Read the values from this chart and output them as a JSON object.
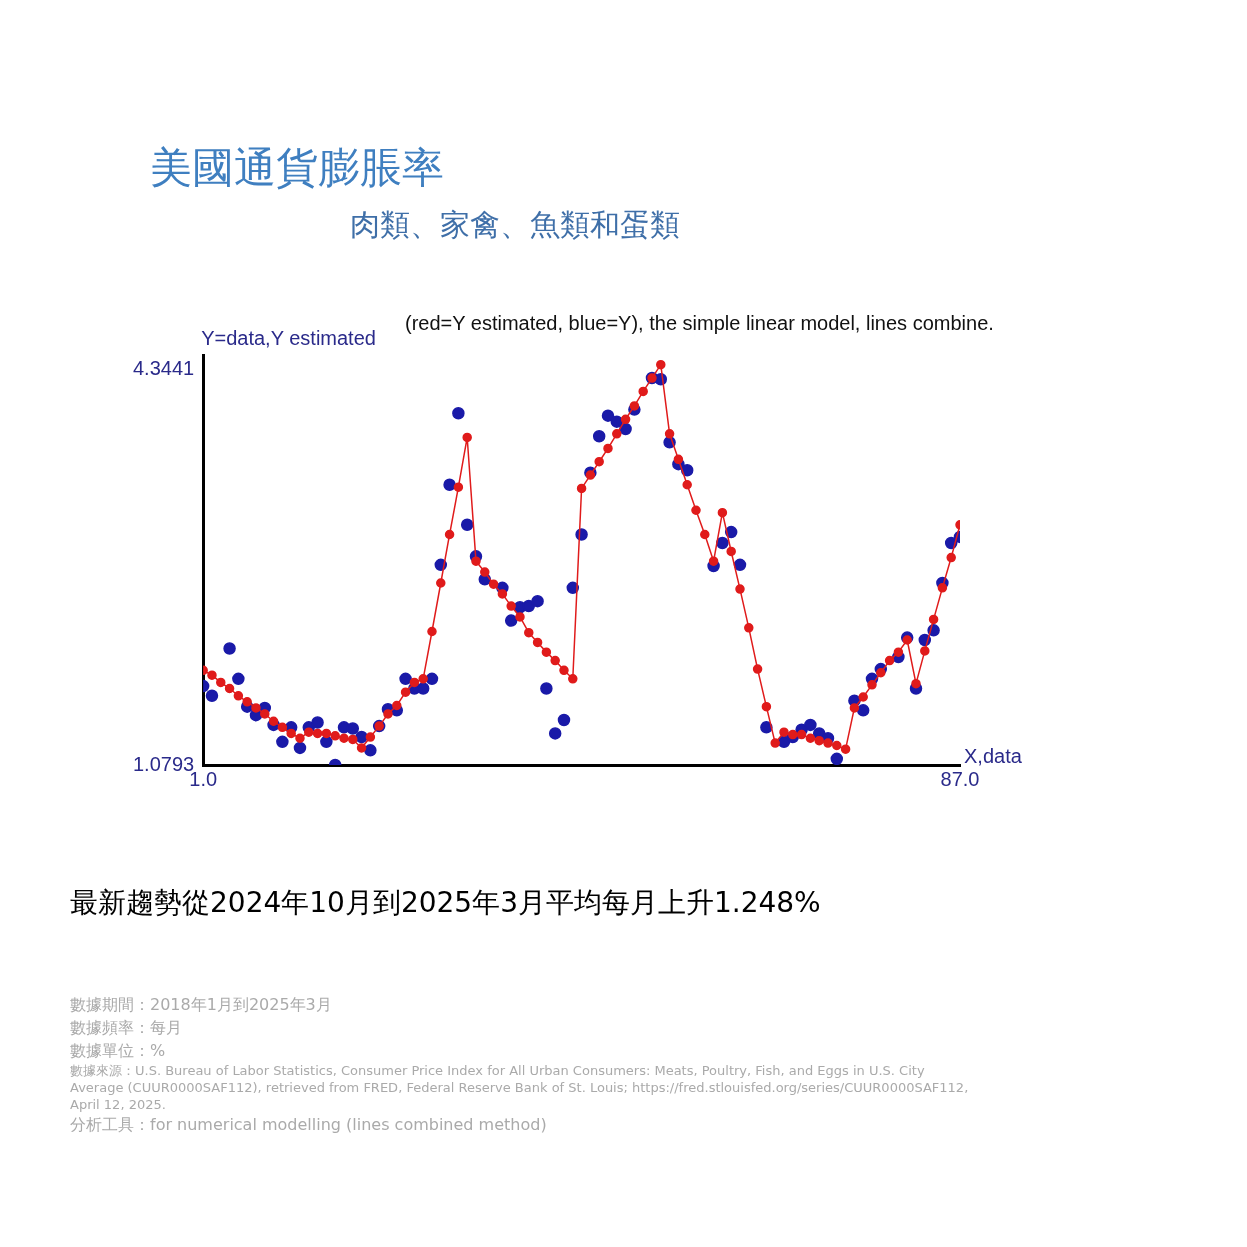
{
  "chart_data": {
    "type": "line",
    "title": "美國通貨膨脹率",
    "subtitle": "肉類、家禽、魚類和蛋類",
    "xlabel": "X,data",
    "ylabel": "Y=data,Y estimated",
    "annotations": [
      "(red=Y estimated, blue=Y), the simple linear model, lines combine.",
      "最新趨勢從2024年10月到2025年3月平均每月上升1.248%",
      "數據期間：2018年1月到2025年3月",
      "數據頻率：每月",
      "數據單位：%",
      "數據來源：U.S. Bureau of Labor Statistics, Consumer Price Index for All Urban Consumers: Meats, Poultry, Fish, and Eggs in U.S. City Average (CUUR0000SAF112), retrieved from FRED, Federal Reserve Bank of St. Louis; https://fred.stlouisfed.org/series/CUUR0000SAF112, April 12, 2025.",
      "分析工具：for numerical modelling (lines combined method)"
    ],
    "x": [
      1,
      2,
      3,
      4,
      5,
      6,
      7,
      8,
      9,
      10,
      11,
      12,
      13,
      14,
      15,
      16,
      17,
      18,
      19,
      20,
      21,
      22,
      23,
      24,
      25,
      26,
      27,
      28,
      29,
      30,
      31,
      32,
      33,
      34,
      35,
      36,
      37,
      38,
      39,
      40,
      41,
      42,
      43,
      44,
      45,
      46,
      47,
      48,
      49,
      50,
      51,
      52,
      53,
      54,
      55,
      56,
      57,
      58,
      59,
      60,
      61,
      62,
      63,
      64,
      65,
      66,
      67,
      68,
      69,
      70,
      71,
      72,
      73,
      74,
      75,
      76,
      77,
      78,
      79,
      80,
      81,
      82,
      83,
      84,
      85,
      86,
      87
    ],
    "xlim": [
      1,
      87
    ],
    "xticks": [
      {
        "value": 1,
        "label": "1.0"
      },
      {
        "value": 87,
        "label": "87.0"
      }
    ],
    "ylim": [
      1.0793,
      4.46
    ],
    "yticks": [
      1.0793,
      4.3441
    ],
    "marker": "circle",
    "series": [
      {
        "type": "line",
        "color": "#e01b1b",
        "values": [
          1.86,
          1.82,
          1.76,
          1.71,
          1.65,
          1.6,
          1.55,
          1.5,
          1.44,
          1.39,
          1.34,
          1.3,
          1.35,
          1.34,
          1.34,
          1.32,
          1.3,
          1.29,
          1.22,
          1.31,
          1.4,
          1.5,
          1.57,
          1.68,
          1.76,
          1.79,
          2.18,
          2.58,
          2.98,
          3.37,
          3.78,
          2.76,
          2.67,
          2.57,
          2.49,
          2.39,
          2.3,
          2.17,
          2.09,
          2.01,
          1.94,
          1.86,
          1.79,
          3.36,
          3.47,
          3.58,
          3.69,
          3.81,
          3.93,
          4.04,
          4.16,
          4.27,
          4.38,
          3.81,
          3.6,
          3.39,
          3.18,
          2.98,
          2.76,
          3.16,
          2.84,
          2.53,
          2.21,
          1.87,
          1.56,
          1.26,
          1.35,
          1.33,
          1.33,
          1.3,
          1.28,
          1.26,
          1.24,
          1.21,
          1.55,
          1.64,
          1.74,
          1.84,
          1.94,
          2.01,
          2.11,
          1.75,
          2.02,
          2.28,
          2.54,
          2.79,
          3.06
        ]
      },
      {
        "type": "scatter",
        "color": "#1a1aa8",
        "values": [
          1.73,
          1.65,
          null,
          2.04,
          1.79,
          1.56,
          1.49,
          1.55,
          1.41,
          1.27,
          1.39,
          1.22,
          1.39,
          1.43,
          1.27,
          1.08,
          1.39,
          1.38,
          1.31,
          1.2,
          1.4,
          1.54,
          1.53,
          1.79,
          1.71,
          1.71,
          1.79,
          2.73,
          3.39,
          3.98,
          3.06,
          2.8,
          2.61,
          null,
          2.54,
          2.27,
          2.38,
          2.39,
          2.43,
          1.71,
          1.34,
          1.45,
          2.54,
          2.98,
          3.49,
          3.79,
          3.96,
          3.91,
          3.85,
          4.01,
          null,
          4.27,
          4.26,
          3.74,
          3.56,
          3.51,
          null,
          null,
          2.72,
          2.91,
          3.0,
          2.73,
          null,
          null,
          1.39,
          null,
          1.27,
          1.31,
          1.37,
          1.41,
          1.34,
          1.3,
          1.13,
          null,
          1.61,
          1.53,
          1.79,
          1.87,
          null,
          1.97,
          2.13,
          1.71,
          2.11,
          2.19,
          2.58,
          2.91,
          2.96
        ]
      }
    ]
  }
}
